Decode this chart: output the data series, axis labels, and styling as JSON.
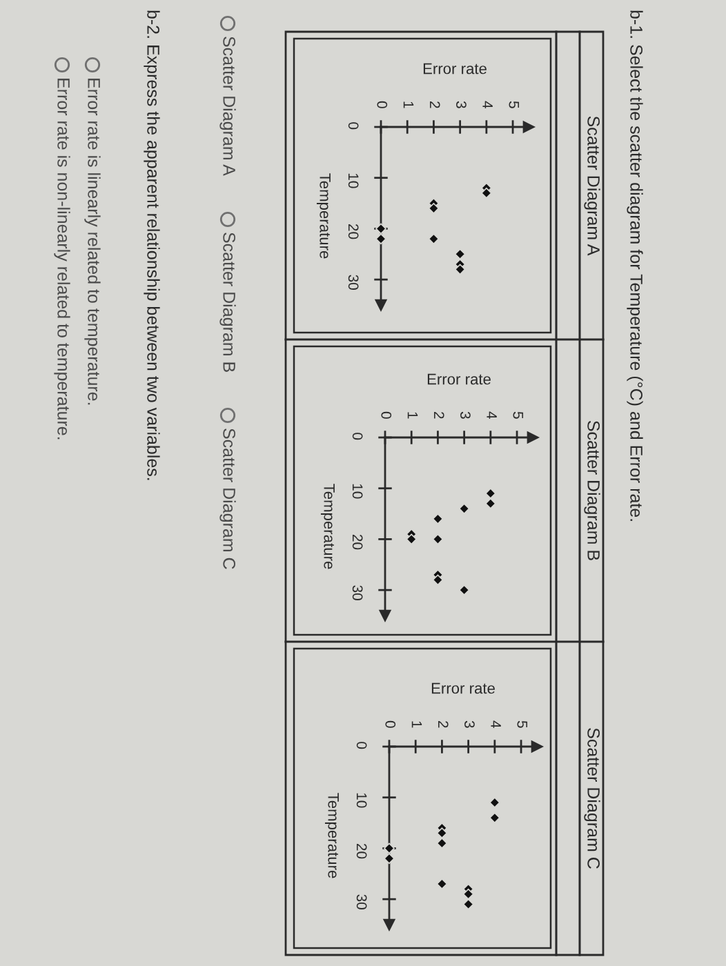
{
  "chart_data": [
    {
      "type": "scatter",
      "xlabel": "Error rate",
      "ylabel": "Temperature",
      "x": [
        4,
        4,
        2,
        2,
        0,
        0,
        2,
        3,
        3,
        3
      ],
      "values": [
        12,
        13,
        15,
        16,
        20,
        22,
        22,
        25,
        27,
        28
      ],
      "color": "#111111",
      "marker": "diamond",
      "xlim": [
        0,
        5.6
      ],
      "ylim": [
        35,
        0
      ],
      "xticks": [
        0,
        1,
        2,
        3,
        4,
        5
      ],
      "yticks": [
        0,
        10,
        20,
        30
      ],
      "annotations": [
        "Scatter Diagram A",
        "b-1. Select the scatter diagram for Temperature (°C) and Error rate.",
        "Scatter Diagram A",
        "Scatter Diagram B",
        "Scatter Diagram C",
        "b-2. Express the apparent relationship between two variables.",
        "Error rate is linearly related to temperature.",
        "Error rate is non-linearly related to temperature."
      ]
    },
    {
      "type": "scatter",
      "xlabel": "Error rate",
      "ylabel": "Temperature",
      "x": [
        4,
        4,
        3,
        2,
        1,
        1,
        2,
        2,
        2,
        3
      ],
      "values": [
        11,
        13,
        14,
        16,
        19,
        20,
        20,
        27,
        28,
        30
      ],
      "color": "#111111",
      "marker": "diamond",
      "xlim": [
        0,
        5.6
      ],
      "ylim": [
        35,
        0
      ],
      "xticks": [
        0,
        1,
        2,
        3,
        4,
        5
      ],
      "yticks": [
        0,
        10,
        20,
        30
      ],
      "annotations": [
        "Scatter Diagram B"
      ]
    },
    {
      "type": "scatter",
      "xlabel": "Error rate",
      "ylabel": "Temperature",
      "x": [
        4,
        4,
        2,
        2,
        2,
        0,
        0,
        2,
        3,
        3,
        3
      ],
      "values": [
        11,
        14,
        16,
        17,
        19,
        20,
        22,
        27,
        28,
        29,
        31
      ],
      "color": "#111111",
      "marker": "diamond",
      "xlim": [
        0,
        5.6
      ],
      "ylim": [
        35,
        0
      ],
      "xticks": [
        0,
        1,
        2,
        3,
        4,
        5
      ],
      "yticks": [
        0,
        10,
        20,
        30
      ],
      "annotations": [
        "Scatter Diagram C"
      ]
    }
  ]
}
